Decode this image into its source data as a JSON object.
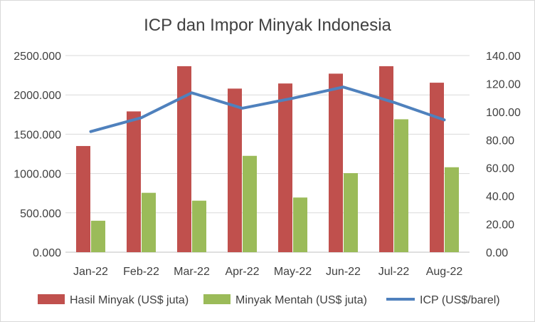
{
  "chart_data": {
    "type": "bar",
    "title": "ICP dan Impor Minyak Indonesia",
    "categories": [
      "Jan-22",
      "Feb-22",
      "Mar-22",
      "Apr-22",
      "May-22",
      "Jun-22",
      "Jul-22",
      "Aug-22"
    ],
    "series": [
      {
        "name": "Hasil Minyak (US$ juta)",
        "type": "bar",
        "axis": "left",
        "color": "#c0504d",
        "values": [
          1350,
          1790,
          2365,
          2080,
          2145,
          2270,
          2365,
          2155
        ]
      },
      {
        "name": "Minyak Mentah (US$ juta)",
        "type": "bar",
        "axis": "right-less-left",
        "color": "#9bbb59",
        "values": [
          400,
          755,
          655,
          1225,
          695,
          1005,
          1690,
          1080
        ]
      },
      {
        "name": "ICP (US$/barel)",
        "type": "line",
        "axis": "right",
        "color": "#4f81bd",
        "values": [
          85.9,
          95.7,
          113.5,
          102.5,
          109.6,
          117.6,
          106.7,
          94.2
        ]
      }
    ],
    "y_left": {
      "ticks": [
        "0.000",
        "500.000",
        "1000.000",
        "1500.000",
        "2000.000",
        "2500.000"
      ],
      "range": [
        0,
        2500
      ]
    },
    "y_right": {
      "ticks": [
        "0.00",
        "20.00",
        "40.00",
        "60.00",
        "80.00",
        "100.00",
        "120.00",
        "140.00"
      ],
      "range": [
        0,
        140
      ]
    },
    "grid": true,
    "legend_position": "bottom"
  }
}
